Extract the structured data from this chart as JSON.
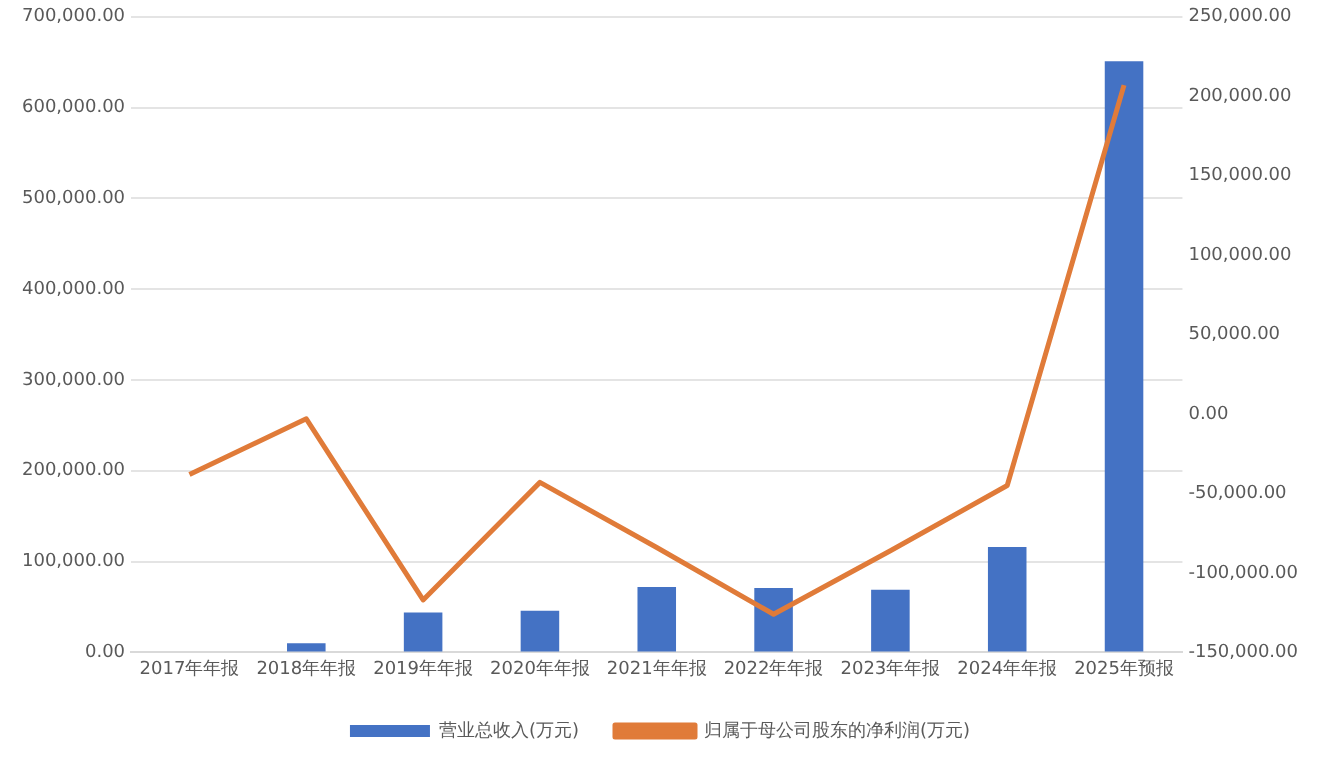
{
  "chart_data": {
    "type": "bar",
    "categories": [
      "2017年年报",
      "2018年年报",
      "2019年年报",
      "2020年年报",
      "2021年年报",
      "2022年年报",
      "2023年年报",
      "2024年年报",
      "2025年预报"
    ],
    "series": [
      {
        "name": "营业总收入(万元)",
        "color": "#4472c4",
        "values": [
          0,
          10000,
          44000,
          46000,
          72000,
          71000,
          69000,
          116000,
          651000
        ]
      },
      {
        "name": "归属于母公司股东的净利润(万元)",
        "type": "line",
        "axis": "y2",
        "color": "#e07b39",
        "values": [
          -38000,
          -3000,
          -117000,
          -43000,
          -84000,
          -126000,
          -86000,
          -45000,
          207000
        ]
      }
    ],
    "ylim": [
      0,
      700000
    ],
    "yticks": [
      {
        "value": 0,
        "label": "0.00"
      },
      {
        "value": 100000,
        "label": "100,000.00"
      },
      {
        "value": 200000,
        "label": "200,000.00"
      },
      {
        "value": 300000,
        "label": "300,000.00"
      },
      {
        "value": 400000,
        "label": "400,000.00"
      },
      {
        "value": 500000,
        "label": "500,000.00"
      },
      {
        "value": 600000,
        "label": "600,000.00"
      },
      {
        "value": 700000,
        "label": "700,000.00"
      }
    ],
    "y2lim": [
      -150000,
      250000
    ],
    "y2ticks": [
      {
        "value": -150000,
        "label": "-150,000.00"
      },
      {
        "value": -100000,
        "label": "-100,000.00"
      },
      {
        "value": -50000,
        "label": "-50,000.00"
      },
      {
        "value": 0,
        "label": "0.00"
      },
      {
        "value": 50000,
        "label": "50,000.00"
      },
      {
        "value": 100000,
        "label": "100,000.00"
      },
      {
        "value": 150000,
        "label": "150,000.00"
      },
      {
        "value": 200000,
        "label": "200,000.00"
      },
      {
        "value": 250000,
        "label": "250,000.00"
      }
    ],
    "grid": "y",
    "legend": "bottom",
    "marker": "none"
  }
}
